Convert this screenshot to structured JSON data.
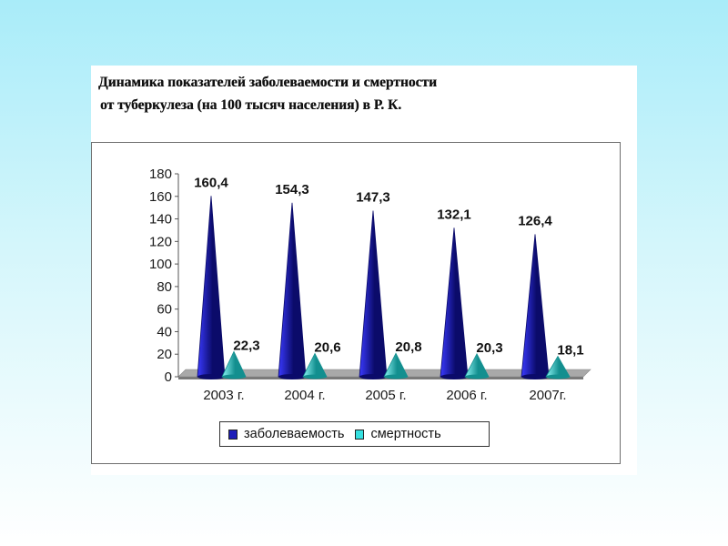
{
  "slide": {
    "title_line1": "Динамика показателей заболеваемости и смертности",
    "title_line2": "от туберкулеза (на 100 тысяч населения)  в Р. К."
  },
  "colors": {
    "incidence": "#1c1cb8",
    "incidence_dark": "#0b0b6a",
    "mortality": "#35e0e0",
    "mortality_dark": "#138f8f",
    "floor": "#a9a9a9",
    "floor_side": "#7a7a7a"
  },
  "chart_data": {
    "type": "bar",
    "categories": [
      "2003 г.",
      "2004 г.",
      "2005 г.",
      "2006 г.",
      "2007г."
    ],
    "series": [
      {
        "name": "заболеваемость",
        "values": [
          160.4,
          154.3,
          147.3,
          132.1,
          126.4
        ],
        "labels": [
          "160,4",
          "154,3",
          "147,3",
          "132,1",
          "126,4"
        ]
      },
      {
        "name": "смертность",
        "values": [
          22.3,
          20.6,
          20.8,
          20.3,
          18.1
        ],
        "labels": [
          "22,3",
          "20,6",
          "20,8",
          "20,3",
          "18,1"
        ]
      }
    ],
    "ylim": [
      0,
      180
    ],
    "yticks": [
      "0",
      "20",
      "40",
      "60",
      "80",
      "100",
      "120",
      "140",
      "160",
      "180"
    ],
    "grid": false,
    "legend_position": "bottom"
  }
}
